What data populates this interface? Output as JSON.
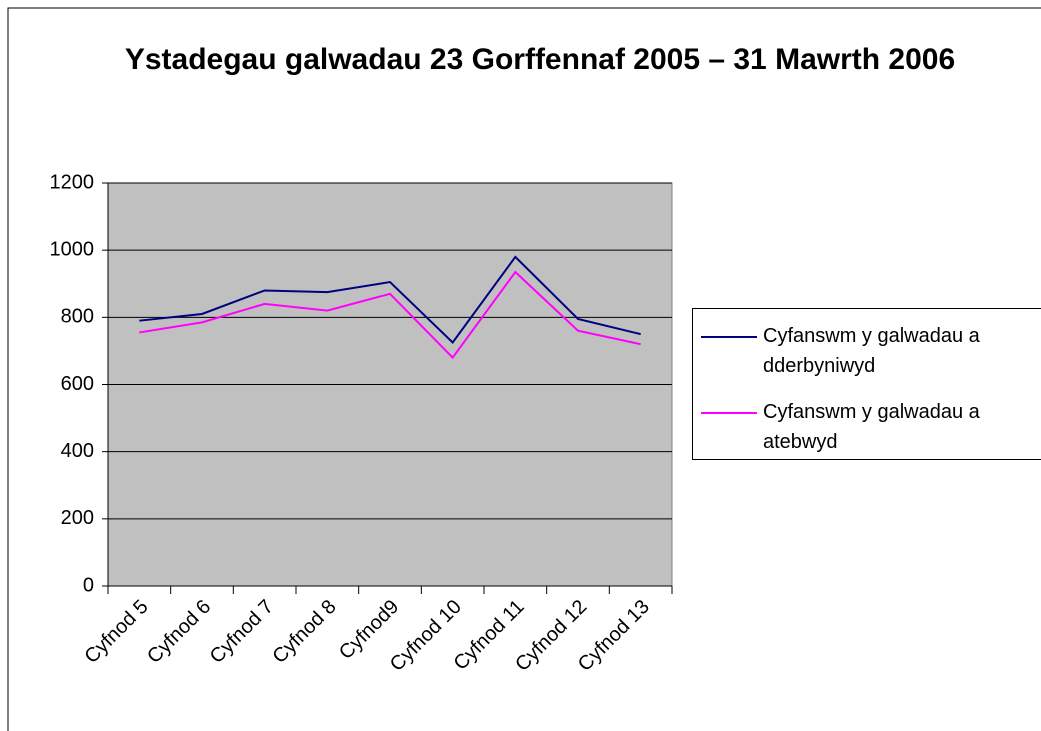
{
  "chart_data": {
    "type": "line",
    "title": "Ystadegau galwadau 23 Gorffennaf 2005 – 31 Mawrth 2006",
    "categories": [
      "Cyfnod 5",
      "Cyfnod 6",
      "Cyfnod 7",
      "Cyfnod 8",
      "Cyfnod9",
      "Cyfnod 10",
      "Cyfnod 11",
      "Cyfnod 12",
      "Cyfnod 13"
    ],
    "series": [
      {
        "name": "Cyfanswm y galwadau a dderbyniwyd",
        "color": "#000080",
        "values": [
          790,
          810,
          880,
          875,
          905,
          725,
          980,
          795,
          750
        ]
      },
      {
        "name": "Cyfanswm y galwadau a atebwyd",
        "color": "#ff00ff",
        "values": [
          755,
          785,
          840,
          820,
          870,
          680,
          935,
          760,
          720
        ]
      }
    ],
    "ylim": [
      0,
      1200
    ],
    "yticks": [
      0,
      200,
      400,
      600,
      800,
      1000,
      1200
    ],
    "grid": true,
    "legend": "right",
    "plot_background": "#c0c0c0"
  }
}
